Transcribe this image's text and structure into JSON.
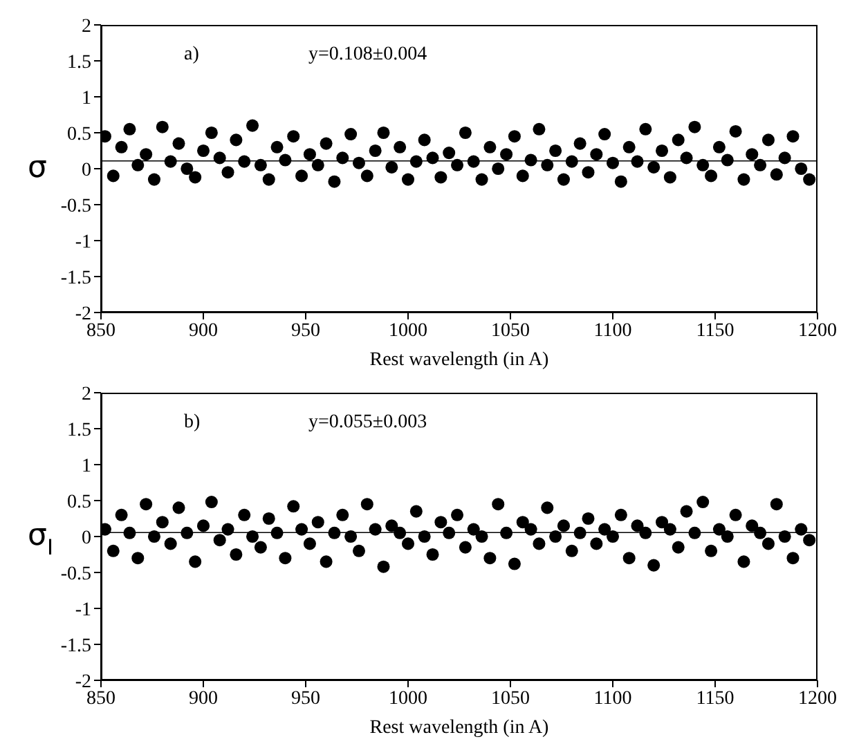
{
  "chart_data": [
    {
      "type": "scatter",
      "xlabel": "Rest wavelength (in A)",
      "ylabel": "σ",
      "annotations": [
        "a)",
        "y=0.108±0.004"
      ],
      "x": [
        852,
        856,
        860,
        864,
        868,
        872,
        876,
        880,
        884,
        888,
        892,
        896,
        900,
        904,
        908,
        912,
        916,
        920,
        924,
        928,
        932,
        936,
        940,
        944,
        948,
        952,
        956,
        960,
        964,
        968,
        972,
        976,
        980,
        984,
        988,
        992,
        996,
        1000,
        1004,
        1008,
        1012,
        1016,
        1020,
        1024,
        1028,
        1032,
        1036,
        1040,
        1044,
        1048,
        1052,
        1056,
        1060,
        1064,
        1068,
        1072,
        1076,
        1080,
        1084,
        1088,
        1092,
        1096,
        1100,
        1104,
        1108,
        1112,
        1116,
        1120,
        1124,
        1128,
        1132,
        1136,
        1140,
        1144,
        1148,
        1152,
        1156,
        1160,
        1164,
        1168,
        1172,
        1176,
        1180,
        1184,
        1188,
        1192,
        1196
      ],
      "series": [
        {
          "color": "#000000",
          "values": [
            0.45,
            -0.1,
            0.3,
            0.55,
            0.05,
            0.2,
            -0.15,
            0.58,
            0.1,
            0.35,
            0.0,
            -0.12,
            0.25,
            0.5,
            0.15,
            -0.05,
            0.4,
            0.1,
            0.6,
            0.05,
            -0.15,
            0.3,
            0.12,
            0.45,
            -0.1,
            0.2,
            0.05,
            0.35,
            -0.18,
            0.15,
            0.48,
            0.08,
            -0.1,
            0.25,
            0.5,
            0.02,
            0.3,
            -0.15,
            0.1,
            0.4,
            0.15,
            -0.12,
            0.22,
            0.05,
            0.5,
            0.1,
            -0.15,
            0.3,
            0.0,
            0.2,
            0.45,
            -0.1,
            0.12,
            0.55,
            0.05,
            0.25,
            -0.15,
            0.1,
            0.35,
            -0.05,
            0.2,
            0.48,
            0.08,
            -0.18,
            0.3,
            0.1,
            0.55,
            0.02,
            0.25,
            -0.12,
            0.4,
            0.15,
            0.58,
            0.05,
            -0.1,
            0.3,
            0.12,
            0.52,
            -0.15,
            0.2,
            0.05,
            0.4,
            -0.08,
            0.15,
            0.45,
            0.0,
            -0.15
          ]
        }
      ],
      "ref_lines": [
        {
          "axis": "y",
          "value": 0.108,
          "color": "#000000"
        }
      ],
      "xlim": [
        850,
        1200
      ],
      "xticks": [
        850,
        900,
        950,
        1000,
        1050,
        1100,
        1150,
        1200
      ],
      "ylim": [
        -2,
        2
      ],
      "yticks": [
        -2,
        -1.5,
        -1,
        -0.5,
        0,
        0.5,
        1,
        1.5,
        2
      ],
      "grid": false,
      "marker": "circle"
    },
    {
      "type": "scatter",
      "xlabel": "Rest wavelength (in A)",
      "ylabel": "σ$_{I}$",
      "annotations": [
        "b)",
        "y=0.055±0.003"
      ],
      "x": [
        852,
        856,
        860,
        864,
        868,
        872,
        876,
        880,
        884,
        888,
        892,
        896,
        900,
        904,
        908,
        912,
        916,
        920,
        924,
        928,
        932,
        936,
        940,
        944,
        948,
        952,
        956,
        960,
        964,
        968,
        972,
        976,
        980,
        984,
        988,
        992,
        996,
        1000,
        1004,
        1008,
        1012,
        1016,
        1020,
        1024,
        1028,
        1032,
        1036,
        1040,
        1044,
        1048,
        1052,
        1056,
        1060,
        1064,
        1068,
        1072,
        1076,
        1080,
        1084,
        1088,
        1092,
        1096,
        1100,
        1104,
        1108,
        1112,
        1116,
        1120,
        1124,
        1128,
        1132,
        1136,
        1140,
        1144,
        1148,
        1152,
        1156,
        1160,
        1164,
        1168,
        1172,
        1176,
        1180,
        1184,
        1188,
        1192,
        1196
      ],
      "series": [
        {
          "color": "#000000",
          "values": [
            0.1,
            -0.2,
            0.3,
            0.05,
            -0.3,
            0.45,
            0.0,
            0.2,
            -0.1,
            0.4,
            0.05,
            -0.35,
            0.15,
            0.48,
            -0.05,
            0.1,
            -0.25,
            0.3,
            0.0,
            -0.15,
            0.25,
            0.05,
            -0.3,
            0.42,
            0.1,
            -0.1,
            0.2,
            -0.35,
            0.05,
            0.3,
            0.0,
            -0.2,
            0.45,
            0.1,
            -0.42,
            0.15,
            0.05,
            -0.1,
            0.35,
            0.0,
            -0.25,
            0.2,
            0.05,
            0.3,
            -0.15,
            0.1,
            0.0,
            -0.3,
            0.45,
            0.05,
            -0.38,
            0.2,
            0.1,
            -0.1,
            0.4,
            0.0,
            0.15,
            -0.2,
            0.05,
            0.25,
            -0.1,
            0.1,
            0.0,
            0.3,
            -0.3,
            0.15,
            0.05,
            -0.4,
            0.2,
            0.1,
            -0.15,
            0.35,
            0.05,
            0.48,
            -0.2,
            0.1,
            0.0,
            0.3,
            -0.35,
            0.15,
            0.05,
            -0.1,
            0.45,
            0.0,
            -0.3,
            0.1,
            -0.05
          ]
        }
      ],
      "ref_lines": [
        {
          "axis": "y",
          "value": 0.055,
          "color": "#000000"
        }
      ],
      "xlim": [
        850,
        1200
      ],
      "xticks": [
        850,
        900,
        950,
        1000,
        1050,
        1100,
        1150,
        1200
      ],
      "ylim": [
        -2,
        2
      ],
      "yticks": [
        -2,
        -1.5,
        -1,
        -0.5,
        0,
        0.5,
        1,
        1.5,
        2
      ],
      "grid": false,
      "marker": "circle"
    }
  ]
}
